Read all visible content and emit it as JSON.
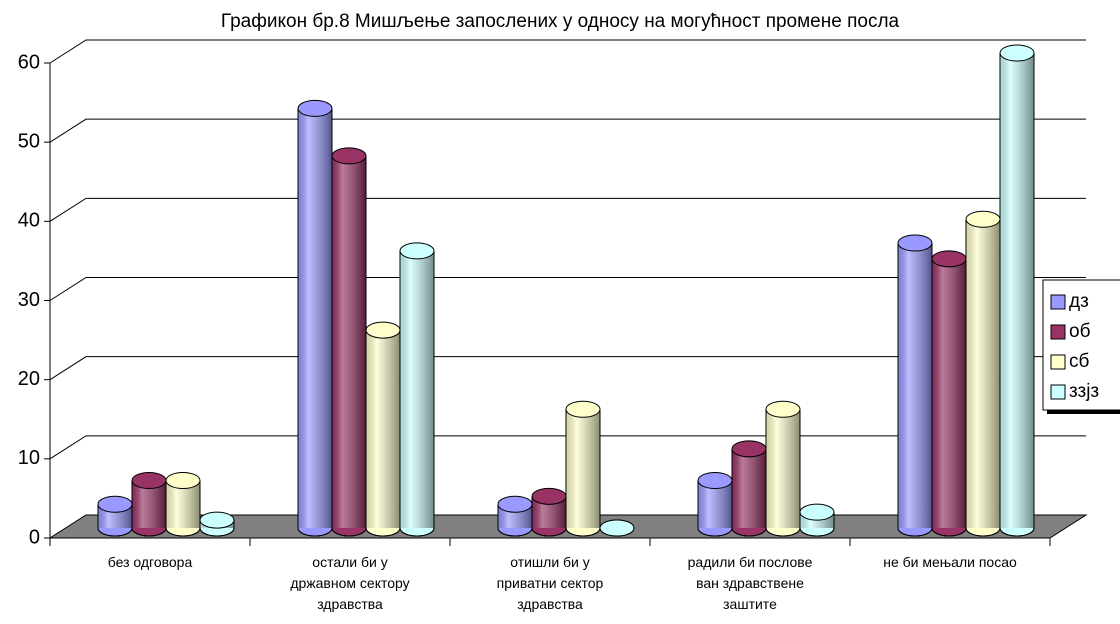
{
  "chart_data": {
    "type": "bar3d",
    "title": "Графикон бр.8 Мишљење запослених у односу на могућност промене посла",
    "categories": [
      "без одговора",
      "остали би у\nдржавном сектору\nздравства",
      "отишли би у\nприватни сектор\nздравства",
      "радили би послове\nван здравствене\nзаштите",
      "не би мењали посао"
    ],
    "series": [
      {
        "name": "дз",
        "color": "#9999ff",
        "values": [
          3,
          53,
          3,
          6,
          36
        ]
      },
      {
        "name": "об",
        "color": "#993366",
        "values": [
          6,
          47,
          4,
          10,
          34
        ]
      },
      {
        "name": "сб",
        "color": "#ffffcc",
        "values": [
          6,
          25,
          15,
          15,
          39
        ]
      },
      {
        "name": "ззјз",
        "color": "#ccffff",
        "values": [
          1,
          35,
          0,
          2,
          60
        ]
      }
    ],
    "ylim": [
      0,
      60
    ],
    "yticks": [
      0,
      10,
      20,
      30,
      40,
      50,
      60
    ],
    "grid": true,
    "legend": "right"
  }
}
